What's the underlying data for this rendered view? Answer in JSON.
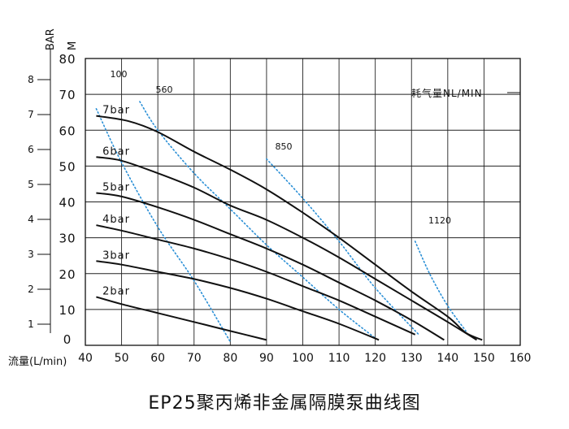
{
  "chart_data": {
    "type": "line",
    "title": "EP25聚丙烯非金属隔膜泵曲线图",
    "xlabel": "流量(L/min)",
    "ylabel_head": "M",
    "ylabel_pressure": "BAR",
    "xlim": [
      40,
      160
    ],
    "ylim": [
      0,
      80
    ],
    "x_ticks": [
      "40",
      "50",
      "60",
      "70",
      "80",
      "90",
      "100",
      "110",
      "120",
      "130",
      "140",
      "150",
      "160"
    ],
    "y_ticks": [
      "0",
      "10",
      "20",
      "30",
      "40",
      "50",
      "60",
      "70",
      "80"
    ],
    "bar_ticks": [
      {
        "label": "1",
        "value": 1
      },
      {
        "label": "2",
        "value": 2
      },
      {
        "label": "3",
        "value": 3
      },
      {
        "label": "4",
        "value": 4
      },
      {
        "label": "5",
        "value": 5
      },
      {
        "label": "6",
        "value": 6
      },
      {
        "label": "7",
        "value": 7
      },
      {
        "label": "8",
        "value": 8
      }
    ],
    "grid": true,
    "series": [
      {
        "name": "7bar",
        "x": [
          43,
          52,
          60,
          70,
          80,
          90,
          100,
          110,
          120,
          130,
          140,
          145,
          149.5
        ],
        "y": [
          64,
          62.5,
          59.5,
          54,
          49,
          43.5,
          37,
          30,
          22.5,
          15,
          8,
          3.5,
          1.5
        ]
      },
      {
        "name": "6bar",
        "x": [
          43,
          50,
          60,
          70,
          80,
          90,
          100,
          110,
          120,
          130,
          140,
          148
        ],
        "y": [
          52.5,
          51.5,
          48,
          44,
          39,
          35,
          30,
          24.5,
          18.5,
          12.5,
          6.5,
          1.5
        ]
      },
      {
        "name": "5bar",
        "x": [
          43,
          50,
          60,
          70,
          80,
          90,
          100,
          110,
          120,
          130,
          139
        ],
        "y": [
          42.5,
          41.5,
          38.5,
          35,
          31,
          27,
          22.5,
          17.5,
          12.5,
          7,
          1.5
        ]
      },
      {
        "name": "4bar",
        "x": [
          43,
          50,
          60,
          70,
          80,
          90,
          100,
          110,
          120,
          131
        ],
        "y": [
          33.5,
          32,
          29.5,
          27,
          24,
          20.5,
          16.5,
          12.5,
          8,
          3
        ]
      },
      {
        "name": "3bar",
        "x": [
          43,
          50,
          60,
          70,
          80,
          90,
          100,
          110,
          121
        ],
        "y": [
          23.5,
          22.5,
          20.5,
          18.5,
          16,
          13,
          9.5,
          6,
          1.5
        ]
      },
      {
        "name": "2bar",
        "x": [
          43,
          50,
          60,
          70,
          80,
          90
        ],
        "y": [
          13.5,
          11.5,
          9,
          6.5,
          4,
          1.5
        ]
      }
    ],
    "air_consumption_title": "耗气量NL/MIN",
    "air_consumption_lines": [
      {
        "label": "100",
        "x": [],
        "y": []
      },
      {
        "label": "560",
        "x": [
          43,
          50,
          60,
          70,
          80
        ],
        "y": [
          66,
          51,
          33,
          18,
          1
        ]
      },
      {
        "label": "850",
        "x": [
          55,
          60,
          70,
          80,
          90,
          100,
          110,
          120
        ],
        "y": [
          68,
          60,
          48,
          38,
          28,
          19,
          10,
          2
        ]
      },
      {
        "label": "1120",
        "x": [
          90,
          100,
          110,
          120,
          132
        ],
        "y": [
          52,
          41,
          29,
          16,
          3
        ]
      },
      {
        "label": "",
        "x": [
          131,
          135,
          140,
          145
        ],
        "y": [
          29,
          20,
          11,
          4
        ]
      }
    ]
  }
}
